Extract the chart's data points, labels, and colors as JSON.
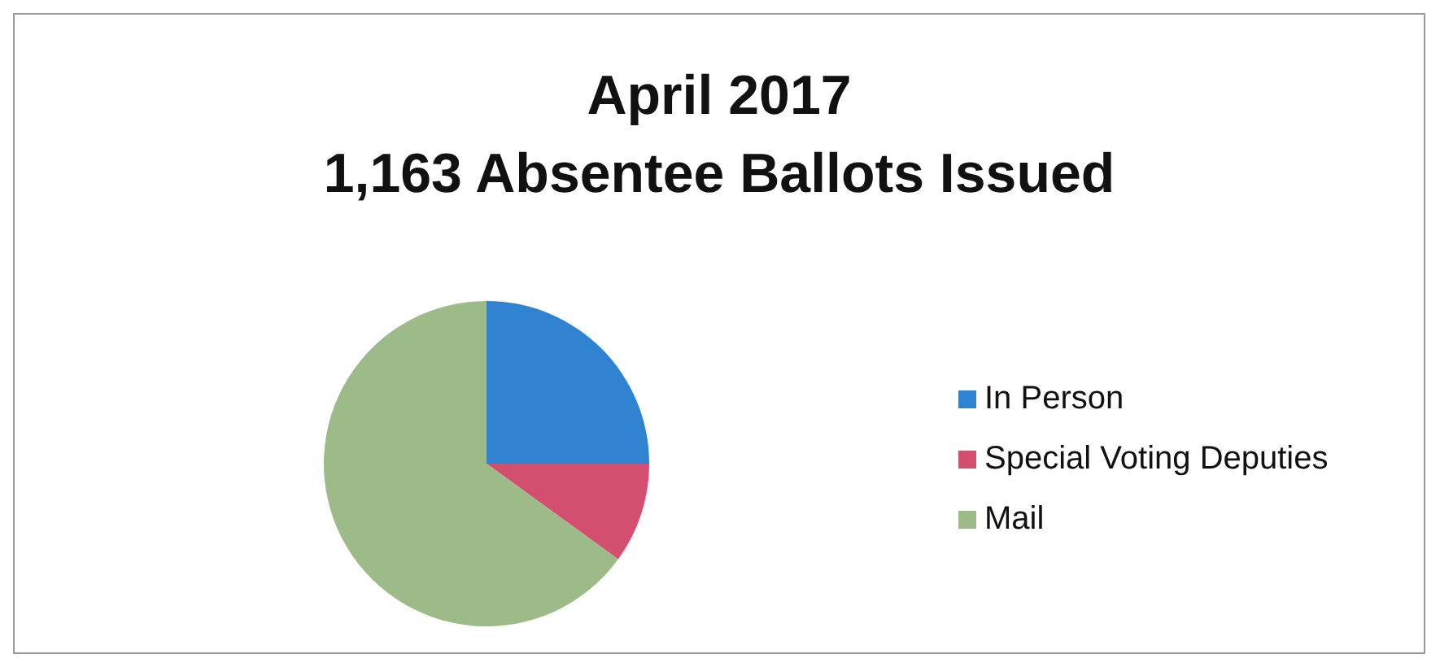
{
  "chart_data": {
    "type": "pie",
    "title": "April 2017\n1,163 Absentee Ballots Issued",
    "categories": [
      "In Person",
      "Special Voting Deputies",
      "Mail"
    ],
    "values": [
      25,
      10,
      65
    ],
    "colors": [
      "#2f83d0",
      "#d24f70",
      "#9cbb88"
    ],
    "legend": "right"
  }
}
